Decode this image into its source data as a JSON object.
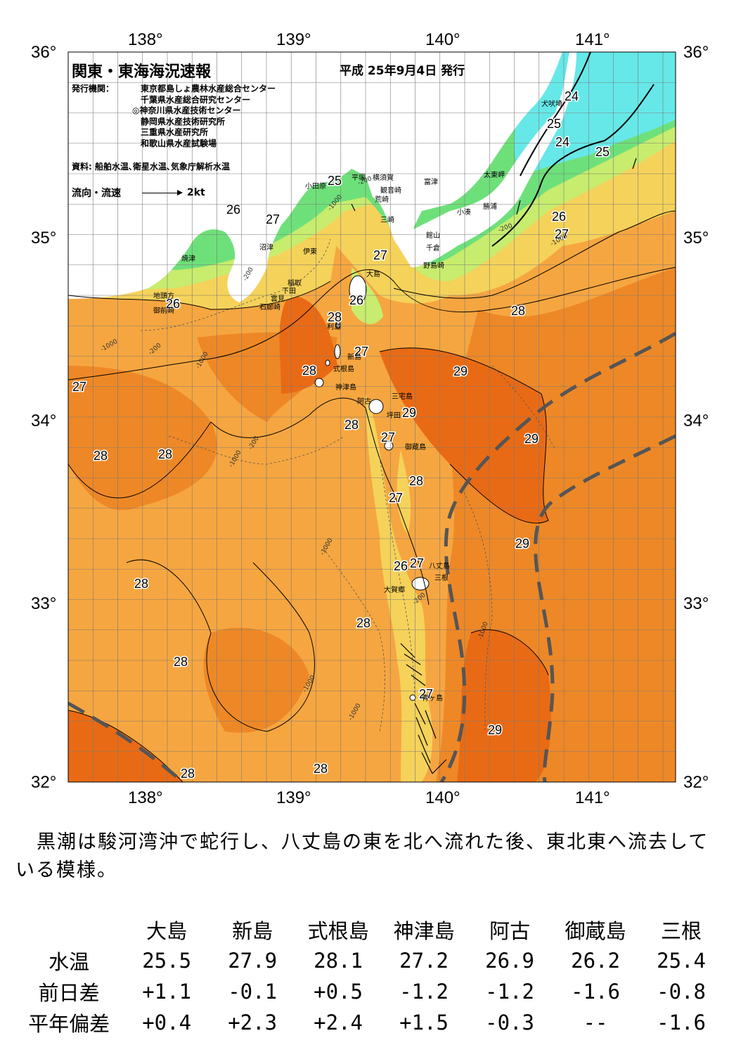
{
  "header": {
    "title": "関東・東海海況速報",
    "date": "平成 25年9月4日 発行",
    "issuer_label": "発行機関：",
    "issuers": [
      "東京都島しょ農林水産総合センター",
      "千葉県水産総合研究センター",
      "◎神奈川県水産技術センター",
      "静岡県水産技術研究所",
      "三重県水産研究所",
      "和歌山県水産試験場"
    ],
    "sources": "資料: 船舶水温､衛星水温､気象庁解析水温",
    "legend_label": "流向・流速",
    "legend_scale": "2kt"
  },
  "map": {
    "lon_labels": [
      "138°",
      "139°",
      "140°",
      "141°"
    ],
    "lat_labels": [
      "36°",
      "35°",
      "34°",
      "33°",
      "32°"
    ],
    "isotherm_labels": [
      "24",
      "24",
      "25",
      "25",
      "25",
      "26",
      "26",
      "26",
      "27",
      "27",
      "27",
      "27",
      "27",
      "27",
      "27",
      "28",
      "28",
      "28",
      "28",
      "28",
      "28",
      "28",
      "28",
      "28",
      "28",
      "28",
      "29",
      "29",
      "29",
      "29",
      "29",
      "28",
      "26",
      "27",
      "27",
      "28"
    ],
    "places": [
      "犬吠埼",
      "太東岬",
      "勝浦",
      "小湊",
      "富津",
      "横須賀",
      "観音崎",
      "平塚",
      "小田原",
      "荒崎",
      "三崎",
      "館山",
      "千倉",
      "野島崎",
      "大島",
      "沼津",
      "伊東",
      "焼津",
      "稲取",
      "下田",
      "雲見",
      "石廊崎",
      "地頭方",
      "御前崎",
      "利島",
      "新島",
      "式根島",
      "神津島",
      "三宅島",
      "阿古",
      "坪田",
      "御蔵島",
      "八丈島",
      "三根",
      "大賀郷",
      "青ヶ島"
    ],
    "depth_labels": [
      "-200",
      "-1000"
    ],
    "colors": {
      "cold": "#66e8e8",
      "cool": "#6ee07a",
      "mild": "#c7ec6e",
      "warm": "#f5d25a",
      "hot": "#f6a640",
      "hotter": "#ee8826",
      "hottest": "#e96a14",
      "land": "#ffffff",
      "kuroshio_axis": "#555555"
    }
  },
  "summary": "黒潮は駿河湾沖で蛇行し、八丈島の東を北へ流れた後、東北東へ流去している模様。",
  "table": {
    "columns": [
      "大島",
      "新島",
      "式根島",
      "神津島",
      "阿古",
      "御蔵島",
      "三根"
    ],
    "rows": [
      {
        "label": "水温",
        "values": [
          "25.5",
          "27.9",
          "28.1",
          "27.2",
          "26.9",
          "26.2",
          "25.4"
        ]
      },
      {
        "label": "前日差",
        "values": [
          "+1.1",
          "-0.1",
          "+0.5",
          "-1.2",
          "-1.2",
          "-1.6",
          "-0.8"
        ]
      },
      {
        "label": "平年偏差",
        "values": [
          "+0.4",
          "+2.3",
          "+2.4",
          "+1.5",
          "-0.3",
          "--",
          "-1.6"
        ]
      }
    ]
  }
}
